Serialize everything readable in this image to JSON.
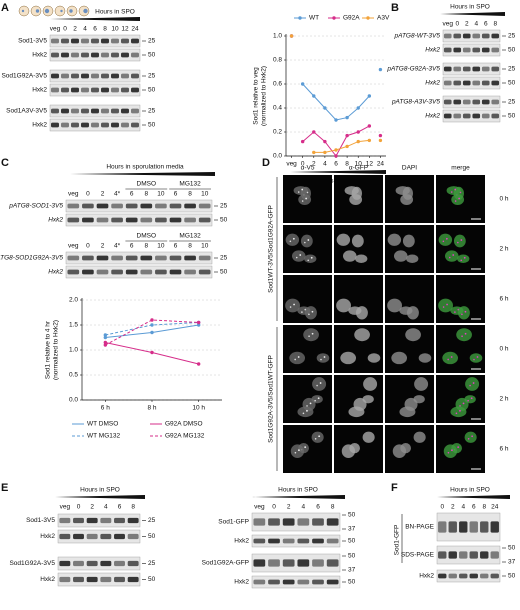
{
  "panels": {
    "A": {
      "label": "A",
      "header": "Hours in SPO",
      "lanes": [
        "veg",
        "0",
        "2",
        "4",
        "6",
        "8",
        "10",
        "12",
        "24"
      ],
      "rows": [
        {
          "name": "Sod1-3V5",
          "markers": [
            25
          ]
        },
        {
          "name": "Hxk2",
          "markers": [
            50
          ]
        },
        {
          "name": "Sod1G92A-3V5",
          "markers": [
            25
          ]
        },
        {
          "name": "Hxk2",
          "markers": [
            50
          ]
        },
        {
          "name": "Sod1A3V-3V5",
          "markers": [
            25
          ]
        },
        {
          "name": "Hxk2",
          "markers": [
            50
          ]
        }
      ]
    },
    "B": {
      "label": "B",
      "header": "Hours in SPO",
      "lanes": [
        "veg",
        "0",
        "2",
        "4",
        "6",
        "8"
      ],
      "rows": [
        {
          "name": "pATG8-WT-3V5",
          "markers": [
            25
          ]
        },
        {
          "name": "Hxk2",
          "markers": [
            50
          ]
        },
        {
          "name": "pATG8-G92A-3V5",
          "markers": [
            25
          ]
        },
        {
          "name": "Hxk2",
          "markers": [
            50
          ]
        },
        {
          "name": "pATG8-A3V-3V5",
          "markers": [
            25
          ]
        },
        {
          "name": "Hxk2",
          "markers": [
            50
          ]
        }
      ]
    },
    "C": {
      "label": "C",
      "header": "Hours in sporulation media",
      "blots": [
        {
          "groups": [
            "DMSO",
            "MG132"
          ],
          "lanes": [
            "veg",
            "0",
            "2",
            "4*",
            "6",
            "8",
            "10",
            "6",
            "8",
            "10"
          ],
          "rows": [
            {
              "name": "pATG8-SOD1-3V5",
              "markers": [
                25
              ]
            },
            {
              "name": "Hxk2",
              "markers": [
                50
              ]
            }
          ]
        },
        {
          "groups": [
            "DMSO",
            "MG132"
          ],
          "lanes": [
            "veg",
            "0",
            "2",
            "4*",
            "6",
            "8",
            "10",
            "6",
            "8",
            "10"
          ],
          "rows": [
            {
              "name": "pATG8-SOD1G92A-3V5",
              "markers": [
                25
              ]
            },
            {
              "name": "Hxk2",
              "markers": [
                50
              ]
            }
          ]
        }
      ]
    },
    "D": {
      "label": "D",
      "columns": [
        "α-V5",
        "α-GFP",
        "DAPI",
        "merge"
      ],
      "groups": [
        {
          "name": "Sod1WT-3V5/Sod1G92A-GFP",
          "times": [
            "0 h",
            "2 h",
            "6 h"
          ]
        },
        {
          "name": "Sod1G92A-3V5/Sod1WT-GFP",
          "times": [
            "0 h",
            "2 h",
            "6 h"
          ]
        }
      ]
    },
    "E": {
      "label": "E",
      "blots": [
        {
          "header": "Hours in SPO",
          "lanes": [
            "veg",
            "0",
            "2",
            "4",
            "6",
            "8"
          ],
          "rows": [
            {
              "name": "Sod1-3V5",
              "markers": [
                25
              ]
            },
            {
              "name": "Hxk2",
              "markers": [
                50
              ]
            },
            {
              "name": "Sod1G92A-3V5",
              "markers": [
                25
              ]
            },
            {
              "name": "Hxk2",
              "markers": [
                50
              ]
            }
          ]
        },
        {
          "header": "Hours in SPO",
          "lanes": [
            "veg",
            "0",
            "2",
            "4",
            "6",
            "8"
          ],
          "rows": [
            {
              "name": "Sod1-GFP",
              "markers": [
                50,
                37
              ]
            },
            {
              "name": "Hxk2",
              "markers": [
                50
              ]
            },
            {
              "name": "Sod1G92A-GFP",
              "markers": [
                50,
                37
              ]
            },
            {
              "name": "Hxk2",
              "markers": [
                50
              ]
            }
          ]
        }
      ]
    },
    "F": {
      "label": "F",
      "header": "Hours in SPO",
      "lanes": [
        "0",
        "2",
        "4",
        "6",
        "8",
        "24"
      ],
      "group": "Sod1-GFP",
      "rows": [
        {
          "name": "BN-PAGE"
        },
        {
          "name": "SDS-PAGE",
          "markers": [
            50,
            37
          ]
        },
        {
          "name": "Hxk2",
          "markers": [
            50
          ]
        }
      ]
    }
  },
  "chart_data": [
    {
      "type": "line",
      "y_label": [
        "Sod1 relative to veg",
        "(normalized to Hxk2)"
      ],
      "x_label": "Hours in SPO",
      "categories": [
        "veg",
        "0",
        "2",
        "4",
        "6",
        "8",
        "10",
        "12",
        "24"
      ],
      "ylim": [
        0,
        1.0
      ],
      "yticks": [
        {
          "value": 0,
          "label": "0.0"
        },
        0.2,
        0.4,
        0.6,
        0.8,
        {
          "value": 1,
          "label": "1.0"
        }
      ],
      "grid": true,
      "legend": "top",
      "series": [
        {
          "name": "WT",
          "color": "#5b9bd5",
          "values": [
            1.0,
            0.6,
            0.5,
            0.4,
            0.3,
            0.32,
            0.4,
            0.5,
            0.72
          ]
        },
        {
          "name": "G92A",
          "color": "#d62d8a",
          "values": [
            1.0,
            0.12,
            0.2,
            0.12,
            0.0,
            0.17,
            0.2,
            0.25,
            0.17
          ]
        },
        {
          "name": "A3V",
          "color": "#f2a33a",
          "values": [
            1.0,
            null,
            0.03,
            0.03,
            0.05,
            0.08,
            0.12,
            0.13,
            0.13
          ]
        }
      ]
    },
    {
      "type": "line",
      "y_label": [
        "Sod1 relative to 4 hr",
        "(normalized to Hxk2)"
      ],
      "categories": [
        "6 h",
        "8 h",
        "10 h"
      ],
      "ylim": [
        0,
        2.0
      ],
      "yticks": [
        {
          "value": 0,
          "label": "0.0"
        },
        0.5,
        {
          "value": 1,
          "label": "1.0"
        },
        1.5,
        {
          "value": 2,
          "label": "2.0"
        }
      ],
      "grid": true,
      "legend": "bottom",
      "series": [
        {
          "name": "WT DMSO",
          "color": "#5b9bd5",
          "dash": false,
          "values": [
            1.25,
            1.35,
            1.5
          ]
        },
        {
          "name": "WT MG132",
          "color": "#5b9bd5",
          "dash": true,
          "values": [
            1.3,
            1.5,
            1.55
          ]
        },
        {
          "name": "G92A DMSO",
          "color": "#d62d8a",
          "dash": false,
          "values": [
            1.15,
            0.95,
            0.72
          ]
        },
        {
          "name": "G92A MG132",
          "color": "#d62d8a",
          "dash": true,
          "values": [
            1.1,
            1.6,
            1.55
          ]
        }
      ]
    }
  ]
}
